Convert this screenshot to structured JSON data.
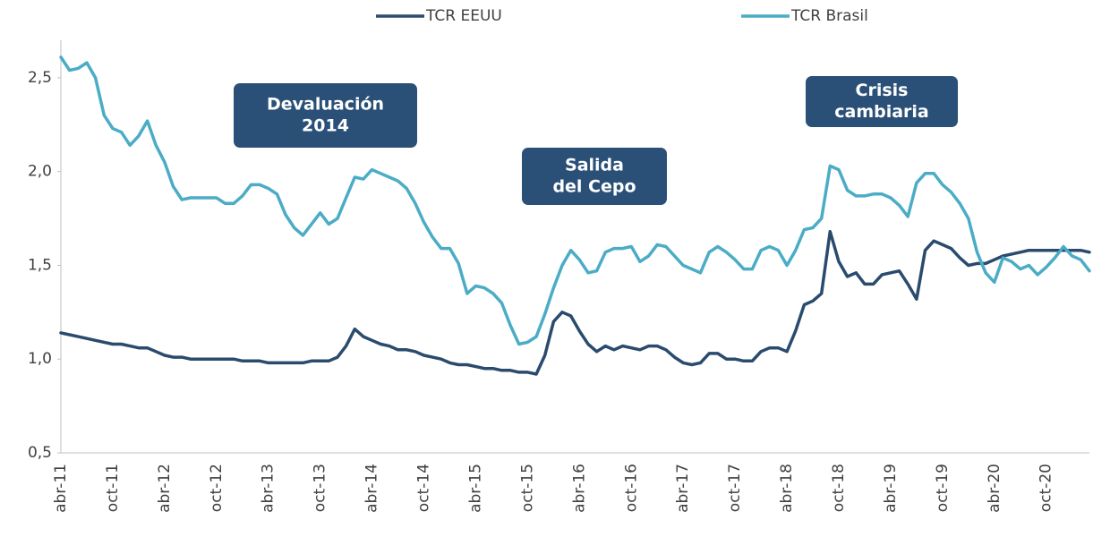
{
  "chart_data": {
    "type": "line",
    "categories": [
      "abr-11",
      null,
      null,
      null,
      null,
      null,
      "oct-11",
      null,
      null,
      null,
      null,
      null,
      "abr-12",
      null,
      null,
      null,
      null,
      null,
      "oct-12",
      null,
      null,
      null,
      null,
      null,
      "abr-13",
      null,
      null,
      null,
      null,
      null,
      "oct-13",
      null,
      null,
      null,
      null,
      null,
      "abr-14",
      null,
      null,
      null,
      null,
      null,
      "oct-14",
      null,
      null,
      null,
      null,
      null,
      "abr-15",
      null,
      null,
      null,
      null,
      null,
      "oct-15",
      null,
      null,
      null,
      null,
      null,
      "abr-16",
      null,
      null,
      null,
      null,
      null,
      "oct-16",
      null,
      null,
      null,
      null,
      null,
      "abr-17",
      null,
      null,
      null,
      null,
      null,
      "oct-17",
      null,
      null,
      null,
      null,
      null,
      "abr-18",
      null,
      null,
      null,
      null,
      null,
      "oct-18",
      null,
      null,
      null,
      null,
      null,
      "abr-19",
      null,
      null,
      null,
      null,
      null,
      "oct-19",
      null,
      null,
      null,
      null,
      null,
      "abr-20",
      null,
      null,
      null,
      null,
      null,
      "oct-20",
      null,
      null,
      null,
      null,
      null
    ],
    "series": [
      {
        "name": "TCR EEUU",
        "color": "#2a4b6e",
        "values": [
          1.14,
          1.13,
          1.12,
          1.11,
          1.1,
          1.09,
          1.08,
          1.08,
          1.07,
          1.06,
          1.06,
          1.04,
          1.02,
          1.01,
          1.01,
          1.0,
          1.0,
          1.0,
          1.0,
          1.0,
          1.0,
          0.99,
          0.99,
          0.99,
          0.98,
          0.98,
          0.98,
          0.98,
          0.98,
          0.99,
          0.99,
          0.99,
          1.01,
          1.07,
          1.16,
          1.12,
          1.1,
          1.08,
          1.07,
          1.05,
          1.05,
          1.04,
          1.02,
          1.01,
          1.0,
          0.98,
          0.97,
          0.97,
          0.96,
          0.95,
          0.95,
          0.94,
          0.94,
          0.93,
          0.93,
          0.92,
          1.02,
          1.2,
          1.25,
          1.23,
          1.15,
          1.08,
          1.04,
          1.07,
          1.05,
          1.07,
          1.06,
          1.05,
          1.07,
          1.07,
          1.05,
          1.01,
          0.98,
          0.97,
          0.98,
          1.03,
          1.03,
          1.0,
          1.0,
          0.99,
          0.99,
          1.04,
          1.06,
          1.06,
          1.04,
          1.15,
          1.29,
          1.31,
          1.35,
          1.68,
          1.52,
          1.44,
          1.46,
          1.4,
          1.4,
          1.45,
          1.46,
          1.47,
          1.4,
          1.32,
          1.58,
          1.63,
          1.61,
          1.59,
          1.54,
          1.5,
          1.51,
          1.51,
          1.53,
          1.55,
          1.56,
          1.57,
          1.58,
          1.58,
          1.58,
          1.58,
          1.58,
          1.58,
          1.58,
          1.57
        ]
      },
      {
        "name": "TCR Brasil",
        "color": "#4bacc6",
        "values": [
          2.61,
          2.54,
          2.55,
          2.58,
          2.5,
          2.3,
          2.23,
          2.21,
          2.14,
          2.19,
          2.27,
          2.14,
          2.05,
          1.92,
          1.85,
          1.86,
          1.86,
          1.86,
          1.86,
          1.83,
          1.83,
          1.87,
          1.93,
          1.93,
          1.91,
          1.88,
          1.77,
          1.7,
          1.66,
          1.72,
          1.78,
          1.72,
          1.75,
          1.86,
          1.97,
          1.96,
          2.01,
          1.99,
          1.97,
          1.95,
          1.91,
          1.83,
          1.73,
          1.65,
          1.59,
          1.59,
          1.51,
          1.35,
          1.39,
          1.38,
          1.35,
          1.3,
          1.18,
          1.08,
          1.09,
          1.12,
          1.24,
          1.38,
          1.5,
          1.58,
          1.53,
          1.46,
          1.47,
          1.57,
          1.59,
          1.59,
          1.6,
          1.52,
          1.55,
          1.61,
          1.6,
          1.55,
          1.5,
          1.48,
          1.46,
          1.57,
          1.6,
          1.57,
          1.53,
          1.48,
          1.48,
          1.58,
          1.6,
          1.58,
          1.5,
          1.58,
          1.69,
          1.7,
          1.75,
          2.03,
          2.01,
          1.9,
          1.87,
          1.87,
          1.88,
          1.88,
          1.86,
          1.82,
          1.76,
          1.94,
          1.99,
          1.99,
          1.93,
          1.89,
          1.83,
          1.75,
          1.57,
          1.46,
          1.41,
          1.54,
          1.52,
          1.48,
          1.5,
          1.45,
          1.49,
          1.54,
          1.6,
          1.55,
          1.53,
          1.47
        ]
      }
    ],
    "ylim": [
      0.5,
      2.7
    ],
    "yticks": [
      {
        "value": 0.5,
        "label": "0,5"
      },
      {
        "value": 1.0,
        "label": "1,0"
      },
      {
        "value": 1.5,
        "label": "1,5"
      },
      {
        "value": 2.0,
        "label": "2,0"
      },
      {
        "value": 2.5,
        "label": "2,5"
      }
    ],
    "legend": "top",
    "annotations": [
      {
        "lines": [
          "Devaluación",
          "2014"
        ]
      },
      {
        "lines": [
          "Salida",
          "del Cepo"
        ]
      },
      {
        "lines": [
          "Crisis",
          "cambiaria"
        ]
      }
    ]
  }
}
